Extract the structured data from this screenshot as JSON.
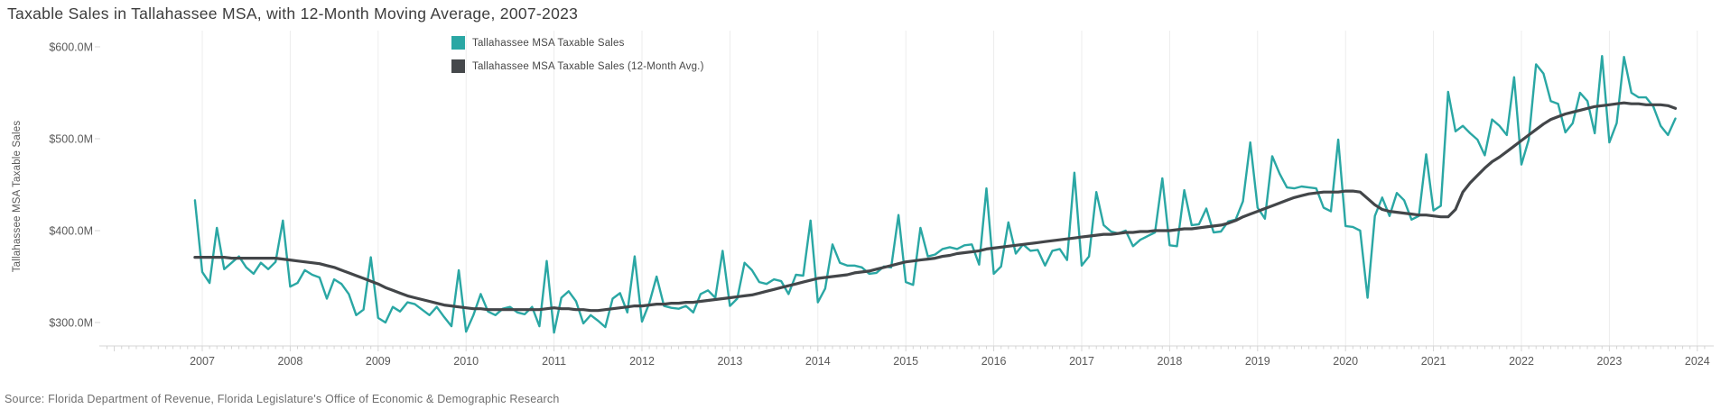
{
  "title": "Taxable Sales in Tallahassee MSA, with 12-Month Moving Average, 2007-2023",
  "source": "Source: Florida Department of Revenue, Florida Legislature's Office of Economic & Demographic Research",
  "y_axis": {
    "label": "Tallahassee MSA Taxable Sales",
    "ticks": [
      "$600.0M",
      "$500.0M",
      "$400.0M",
      "$300.0M"
    ],
    "tick_values": [
      600,
      500,
      400,
      300
    ]
  },
  "x_axis": {
    "years": [
      2007,
      2008,
      2009,
      2010,
      2011,
      2012,
      2013,
      2014,
      2015,
      2016,
      2017,
      2018,
      2019,
      2020,
      2021,
      2022,
      2023,
      2024
    ]
  },
  "legend": [
    {
      "label": "Tallahassee MSA Taxable Sales",
      "color": "#2aa7a4"
    },
    {
      "label": "Tallahassee MSA Taxable Sales (12-Month Avg.)",
      "color": "#45484b"
    }
  ],
  "colors": {
    "sales": "#2aa7a4",
    "moving_avg": "#434649",
    "gridline": "#ededed",
    "axis_line": "#d4d4d4",
    "tick_text": "#595959"
  },
  "chart_data": {
    "type": "line",
    "title": "Taxable Sales in Tallahassee MSA, with 12-Month Moving Average, 2007-2023",
    "xlabel": "",
    "ylabel": "Tallahassee MSA Taxable Sales",
    "x_unit": "month",
    "x_start": "2006-12",
    "x_end": "2023-10",
    "x_tick_labels": [
      "2007",
      "2008",
      "2009",
      "2010",
      "2011",
      "2012",
      "2013",
      "2014",
      "2015",
      "2016",
      "2017",
      "2018",
      "2019",
      "2020",
      "2021",
      "2022",
      "2023",
      "2024"
    ],
    "y_ticks_millions": [
      300,
      400,
      500,
      600
    ],
    "ylim_millions": [
      273,
      617
    ],
    "values_unit": "USD millions",
    "grid": "vertical-year-gridlines",
    "legend_position": "top-center-left",
    "series": [
      {
        "name": "Tallahassee MSA Taxable Sales",
        "color": "#2aa7a4",
        "values": [
          433,
          355,
          343,
          403,
          358,
          365,
          372,
          360,
          353,
          365,
          358,
          366,
          411,
          339,
          343,
          357,
          352,
          349,
          326,
          347,
          342,
          331,
          308,
          314,
          371,
          305,
          300,
          317,
          312,
          322,
          320,
          314,
          308,
          317,
          306,
          296,
          357,
          290,
          308,
          331,
          312,
          308,
          315,
          317,
          311,
          309,
          317,
          296,
          367,
          289,
          327,
          334,
          323,
          299,
          308,
          302,
          295,
          326,
          332,
          311,
          372,
          301,
          321,
          350,
          318,
          316,
          315,
          318,
          311,
          331,
          335,
          327,
          378,
          318,
          326,
          365,
          357,
          344,
          342,
          347,
          345,
          331,
          352,
          351,
          411,
          322,
          337,
          385,
          365,
          362,
          362,
          360,
          353,
          354,
          361,
          360,
          417,
          344,
          341,
          403,
          372,
          374,
          380,
          382,
          380,
          384,
          385,
          363,
          446,
          353,
          361,
          409,
          375,
          385,
          378,
          379,
          362,
          378,
          380,
          368,
          463,
          362,
          372,
          442,
          406,
          399,
          397,
          400,
          383,
          390,
          394,
          398,
          457,
          384,
          383,
          444,
          406,
          407,
          424,
          398,
          399,
          410,
          412,
          432,
          496,
          425,
          413,
          481,
          462,
          447,
          446,
          448,
          447,
          446,
          425,
          421,
          499,
          405,
          404,
          400,
          327,
          416,
          436,
          416,
          441,
          433,
          412,
          416,
          483,
          422,
          427,
          551,
          508,
          514,
          506,
          499,
          482,
          521,
          514,
          504,
          567,
          472,
          499,
          581,
          571,
          541,
          538,
          507,
          517,
          550,
          541,
          506,
          590,
          496,
          517,
          589,
          550,
          545,
          545,
          535,
          514,
          504,
          522
        ]
      },
      {
        "name": "Tallahassee MSA Taxable Sales (12-Month Avg.)",
        "color": "#434649",
        "values": [
          371,
          371,
          371,
          371,
          371,
          370,
          370,
          370,
          370,
          370,
          370,
          370,
          369,
          368,
          367,
          366,
          365,
          364,
          362,
          360,
          357,
          354,
          351,
          348,
          345,
          342,
          338,
          335,
          332,
          329,
          327,
          325,
          323,
          321,
          319,
          318,
          317,
          316,
          315,
          315,
          314,
          314,
          314,
          314,
          314,
          314,
          314,
          314,
          315,
          316,
          315,
          315,
          314,
          314,
          313,
          313,
          314,
          315,
          316,
          317,
          318,
          318,
          319,
          320,
          320,
          321,
          321,
          322,
          322,
          323,
          324,
          325,
          326,
          327,
          328,
          329,
          330,
          332,
          334,
          336,
          338,
          340,
          342,
          344,
          346,
          348,
          349,
          350,
          351,
          352,
          354,
          355,
          356,
          358,
          360,
          362,
          364,
          366,
          367,
          368,
          369,
          370,
          372,
          373,
          375,
          376,
          377,
          378,
          380,
          381,
          382,
          383,
          384,
          385,
          386,
          387,
          388,
          389,
          390,
          391,
          392,
          393,
          394,
          395,
          396,
          396,
          397,
          398,
          398,
          399,
          399,
          400,
          400,
          400,
          401,
          402,
          402,
          403,
          404,
          405,
          406,
          408,
          411,
          415,
          418,
          421,
          424,
          427,
          430,
          433,
          436,
          438,
          440,
          441,
          442,
          442,
          442,
          443,
          443,
          442,
          435,
          428,
          423,
          421,
          420,
          419,
          418,
          417,
          417,
          416,
          415,
          415,
          423,
          442,
          452,
          460,
          468,
          475,
          480,
          486,
          492,
          498,
          504,
          510,
          516,
          521,
          524,
          527,
          529,
          531,
          533,
          535,
          536,
          537,
          538,
          539,
          538,
          538,
          537,
          537,
          537,
          536,
          533
        ]
      }
    ]
  }
}
